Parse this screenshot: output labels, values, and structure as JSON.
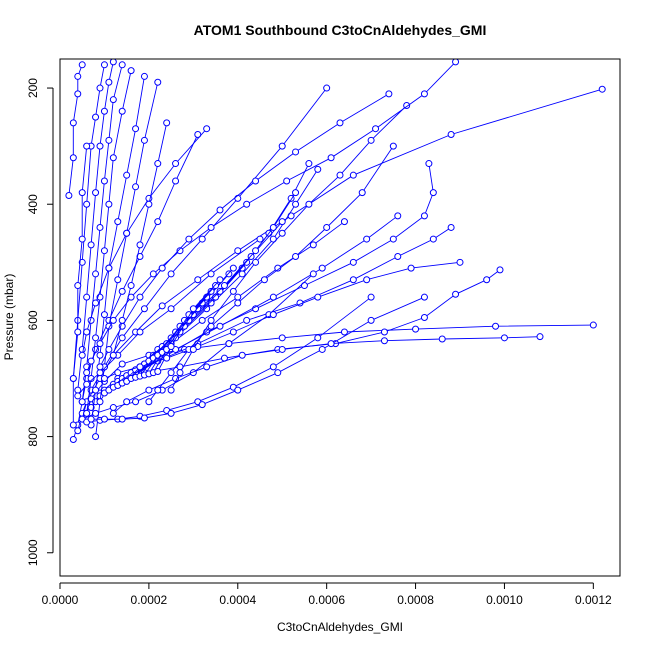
{
  "chart_data": {
    "type": "line",
    "title": "ATOM1 Southbound C3toCnAldehydes_GMI",
    "xlabel": "C3toCnAldehydes_GMI",
    "ylabel": "Pressure (mbar)",
    "xlim": [
      0,
      0.00126
    ],
    "ylim": [
      1040,
      150
    ],
    "y_reversed": true,
    "x_ticks": [
      "0.0000",
      "0.0002",
      "0.0004",
      "0.0006",
      "0.0008",
      "0.0010",
      "0.0012"
    ],
    "x_tick_values": [
      0,
      0.0002,
      0.0004,
      0.0006,
      0.0008,
      0.001,
      0.0012
    ],
    "y_ticks": [
      "200",
      "400",
      "600",
      "800",
      "1000"
    ],
    "y_tick_values": [
      200,
      400,
      600,
      800,
      1000
    ],
    "grid": false,
    "legend": "none",
    "marker": "open-circle",
    "color": "#0000ff",
    "series": [
      {
        "x": [
          3e-05,
          4e-05,
          5e-05,
          6e-05,
          8e-05,
          0.00011,
          0.00014,
          0.00018,
          0.00022,
          0.00026,
          0.00031
        ],
        "y": [
          805,
          780,
          740,
          700,
          650,
          600,
          550,
          490,
          430,
          360,
          280
        ]
      },
      {
        "x": [
          4e-05,
          5e-05,
          7e-05,
          0.0001,
          0.00014,
          0.00019,
          0.00025,
          0.00032,
          0.0004,
          0.0005,
          0.0006
        ],
        "y": [
          790,
          760,
          720,
          680,
          630,
          580,
          520,
          460,
          390,
          300,
          200
        ]
      },
      {
        "x": [
          5e-05,
          6e-05,
          9e-05,
          0.00012,
          0.00017,
          0.00023,
          0.00031,
          0.0004,
          0.00052,
          0.00066,
          0.00088,
          0.00122
        ],
        "y": [
          770,
          740,
          700,
          660,
          620,
          575,
          530,
          480,
          420,
          350,
          280,
          202
        ]
      },
      {
        "x": [
          6e-05,
          7e-05,
          0.0001,
          0.00014,
          0.0002,
          0.00028,
          0.00038,
          0.0005,
          0.00064,
          0.0008,
          0.00098,
          0.0012
        ],
        "y": [
          760,
          735,
          705,
          675,
          660,
          650,
          640,
          630,
          620,
          615,
          610,
          608
        ]
      },
      {
        "x": [
          7e-05,
          9e-05,
          0.00013,
          0.00019,
          0.00027,
          0.00037,
          0.00049,
          0.00062,
          0.00073,
          0.00082,
          0.00089,
          0.00096,
          0.00099
        ],
        "y": [
          750,
          725,
          700,
          690,
          680,
          665,
          650,
          640,
          620,
          595,
          555,
          530,
          513
        ]
      },
      {
        "x": [
          8e-05,
          0.0001,
          0.00015,
          0.00022,
          0.00031,
          0.00042,
          0.00054,
          0.00066,
          0.00076,
          0.00084,
          0.00088
        ],
        "y": [
          740,
          720,
          700,
          670,
          640,
          600,
          570,
          530,
          490,
          460,
          440
        ]
      },
      {
        "x": [
          9e-05,
          0.00012,
          0.00017,
          0.00024,
          0.00033,
          0.00044,
          0.00055,
          0.00066,
          0.00075,
          0.00082,
          0.00084,
          0.00083
        ],
        "y": [
          730,
          710,
          690,
          660,
          620,
          580,
          540,
          500,
          460,
          420,
          380,
          330
        ]
      },
      {
        "x": [
          0.0001,
          0.00013,
          0.00018,
          0.00026,
          0.00036,
          0.00048,
          0.00059,
          0.00069,
          0.00076
        ],
        "y": [
          725,
          705,
          680,
          650,
          610,
          560,
          510,
          460,
          420
        ]
      },
      {
        "x": [
          0.00011,
          0.00014,
          0.00019,
          0.00025,
          0.00032,
          0.0004,
          0.00049,
          0.00057,
          0.00064
        ],
        "y": [
          720,
          700,
          675,
          640,
          600,
          560,
          510,
          470,
          430
        ]
      },
      {
        "x": [
          0.00012,
          0.00015,
          0.0002,
          0.00026,
          0.00033,
          0.00041,
          0.00048,
          0.00053,
          0.00058
        ],
        "y": [
          715,
          695,
          670,
          630,
          580,
          520,
          460,
          400,
          340
        ]
      },
      {
        "x": [
          0.00013,
          0.00016,
          0.00021,
          0.00027,
          0.00034,
          0.00041,
          0.00047,
          0.00052,
          0.00056
        ],
        "y": [
          712,
          690,
          660,
          620,
          570,
          510,
          450,
          390,
          330
        ]
      },
      {
        "x": [
          0.00014,
          0.00017,
          0.00022,
          0.00028,
          0.00035,
          0.00042,
          0.00048,
          0.00053
        ],
        "y": [
          708,
          685,
          650,
          610,
          560,
          500,
          440,
          380
        ]
      },
      {
        "x": [
          0.00015,
          0.00018,
          0.00023,
          0.00029,
          0.00036,
          0.00043,
          0.0005
        ],
        "y": [
          705,
          680,
          645,
          600,
          550,
          490,
          430
        ]
      },
      {
        "x": [
          0.00016,
          0.00019,
          0.00024,
          0.0003,
          0.00037,
          0.00044
        ],
        "y": [
          700,
          675,
          640,
          590,
          540,
          480
        ]
      },
      {
        "x": [
          0.00017,
          0.0002,
          0.00025,
          0.00031,
          0.00038
        ],
        "y": [
          698,
          670,
          630,
          580,
          520
        ]
      },
      {
        "x": [
          0.00018,
          0.00021,
          0.00026,
          0.00032,
          0.00039
        ],
        "y": [
          696,
          665,
          620,
          570,
          510
        ]
      },
      {
        "x": [
          0.00019,
          0.00022,
          0.00027,
          0.00033
        ],
        "y": [
          694,
          660,
          610,
          560
        ]
      },
      {
        "x": [
          0.0002,
          0.00023,
          0.00028,
          0.00034
        ],
        "y": [
          692,
          655,
          600,
          550
        ]
      },
      {
        "x": [
          0.00021,
          0.00024,
          0.00029,
          0.00035
        ],
        "y": [
          690,
          650,
          590,
          540
        ]
      },
      {
        "x": [
          0.00022,
          0.00025,
          0.0003,
          0.00036
        ],
        "y": [
          688,
          645,
          580,
          530
        ]
      },
      {
        "x": [
          3e-05,
          4e-05,
          5e-05,
          6e-05,
          7e-05,
          8e-05,
          9e-05,
          0.0001
        ],
        "y": [
          700,
          600,
          500,
          400,
          300,
          250,
          200,
          160
        ]
      },
      {
        "x": [
          4e-05,
          5e-05,
          6e-05,
          7e-05,
          8e-05,
          9e-05,
          0.0001,
          0.00011,
          0.00012
        ],
        "y": [
          720,
          650,
          560,
          470,
          380,
          300,
          240,
          190,
          155
        ]
      },
      {
        "x": [
          5e-05,
          6e-05,
          7e-05,
          8e-05,
          9e-05,
          0.0001,
          0.00011,
          0.00012,
          0.00014
        ],
        "y": [
          740,
          680,
          600,
          520,
          440,
          360,
          290,
          220,
          160
        ]
      },
      {
        "x": [
          6e-05,
          7e-05,
          8e-05,
          9e-05,
          0.0001,
          0.00011,
          0.00012,
          0.00014,
          0.00016
        ],
        "y": [
          760,
          700,
          630,
          560,
          480,
          400,
          320,
          240,
          170
        ]
      },
      {
        "x": [
          7e-05,
          8e-05,
          9e-05,
          0.0001,
          0.00011,
          0.00013,
          0.00015,
          0.00017,
          0.00019
        ],
        "y": [
          780,
          720,
          660,
          590,
          510,
          430,
          350,
          270,
          180
        ]
      },
      {
        "x": [
          8e-05,
          9e-05,
          0.0001,
          0.00011,
          0.00013,
          0.00015,
          0.00017,
          0.00019,
          0.00022
        ],
        "y": [
          800,
          740,
          680,
          610,
          530,
          450,
          370,
          290,
          190
        ]
      },
      {
        "x": [
          3e-05,
          3e-05,
          4e-05,
          4e-05,
          5e-05,
          5e-05,
          6e-05
        ],
        "y": [
          780,
          700,
          620,
          540,
          460,
          380,
          300
        ]
      },
      {
        "x": [
          2e-05,
          3e-05,
          3e-05,
          4e-05,
          4e-05,
          5e-05
        ],
        "y": [
          385,
          320,
          260,
          210,
          180,
          160
        ]
      },
      {
        "x": [
          4e-05,
          6e-05,
          9e-05,
          0.00013,
          0.00018,
          0.00025,
          0.00034,
          0.00045
        ],
        "y": [
          730,
          710,
          690,
          660,
          620,
          580,
          520,
          460
        ]
      },
      {
        "x": [
          5e-05,
          8e-05,
          0.00012,
          0.00017,
          0.00023,
          0.0003,
          0.00038,
          0.00047,
          0.00057
        ],
        "y": [
          770,
          760,
          750,
          740,
          720,
          690,
          640,
          590,
          520
        ]
      },
      {
        "x": [
          6e-05,
          9e-05,
          0.00013,
          0.00018,
          0.00024,
          0.00031,
          0.00039,
          0.00048,
          0.00058,
          0.0007
        ],
        "y": [
          775,
          772,
          770,
          765,
          755,
          740,
          715,
          680,
          630,
          560
        ]
      },
      {
        "x": [
          7e-05,
          0.0001,
          0.00014,
          0.00019,
          0.00025,
          0.00032,
          0.0004,
          0.00049,
          0.00059,
          0.0007,
          0.00082
        ],
        "y": [
          770,
          770,
          770,
          768,
          760,
          745,
          720,
          690,
          650,
          600,
          560
        ]
      },
      {
        "x": [
          0.0001,
          0.00013,
          0.00018,
          0.00024,
          0.00031,
          0.00039,
          0.00048,
          0.00058,
          0.00069,
          0.00079,
          0.0009
        ],
        "y": [
          700,
          690,
          680,
          665,
          645,
          620,
          590,
          560,
          530,
          510,
          500
        ]
      },
      {
        "x": [
          0.00012,
          0.00015,
          0.0002,
          0.00026,
          0.00033,
          0.00041,
          0.0005,
          0.00061,
          0.00073,
          0.00086,
          0.001,
          0.00108
        ],
        "y": [
          760,
          740,
          720,
          700,
          680,
          660,
          650,
          640,
          635,
          632,
          630,
          628
        ]
      },
      {
        "x": [
          0.0002,
          0.00022,
          0.00025,
          0.00029,
          0.00034,
          0.0004,
          0.00046,
          0.00053,
          0.0006,
          0.00068,
          0.00075
        ],
        "y": [
          740,
          720,
          690,
          650,
          610,
          570,
          530,
          490,
          440,
          380,
          300
        ]
      },
      {
        "x": [
          0.00025,
          0.00027,
          0.0003,
          0.00034,
          0.00039,
          0.00044,
          0.0005,
          0.00056,
          0.00063,
          0.0007,
          0.00078
        ],
        "y": [
          720,
          690,
          650,
          600,
          550,
          500,
          450,
          400,
          350,
          290,
          230
        ]
      },
      {
        "x": [
          6e-05,
          7e-05,
          9e-05,
          0.00012,
          0.00016,
          0.00021,
          0.00027,
          0.00034,
          0.00042,
          0.00051,
          0.00061,
          0.00071,
          0.00082,
          0.00089
        ],
        "y": [
          690,
          670,
          640,
          600,
          560,
          520,
          480,
          440,
          400,
          360,
          320,
          270,
          210,
          155
        ]
      },
      {
        "x": [
          9e-05,
          0.00011,
          0.00014,
          0.00018,
          0.00023,
          0.00029,
          0.00036,
          0.00044,
          0.00053,
          0.00063,
          0.00074
        ],
        "y": [
          680,
          650,
          610,
          560,
          510,
          460,
          410,
          360,
          310,
          260,
          210
        ]
      },
      {
        "x": [
          5e-05,
          6e-05,
          8e-05,
          0.00011,
          0.00015,
          0.0002,
          0.00026,
          0.00033
        ],
        "y": [
          660,
          620,
          570,
          510,
          450,
          390,
          330,
          270
        ]
      },
      {
        "x": [
          0.00012,
          0.00014,
          0.00016,
          0.00018,
          0.0002,
          0.00022,
          0.00024
        ],
        "y": [
          660,
          600,
          540,
          470,
          400,
          330,
          260
        ]
      }
    ]
  }
}
